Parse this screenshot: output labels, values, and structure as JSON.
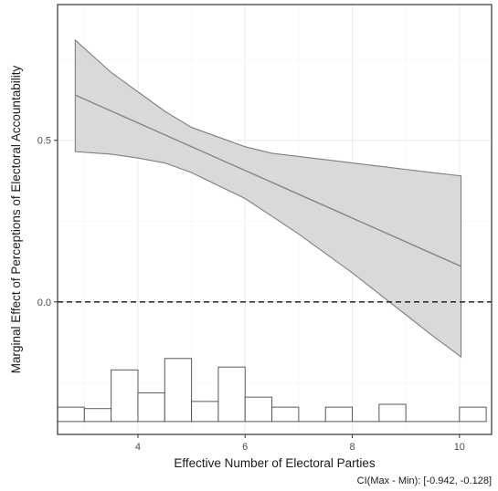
{
  "chart_data": {
    "type": "line",
    "xlabel": "Effective Number of Electoral Parties",
    "ylabel": "Marginal Effect of Perceptions of Electoral Accountability",
    "caption": "CI(Max - Min): [-0.942, -0.128]",
    "xlim": [
      2.5,
      10.6
    ],
    "ylim": [
      -0.41,
      0.92
    ],
    "x_ticks": [
      4,
      6,
      8,
      10
    ],
    "y_ticks": [
      0.0,
      0.5
    ],
    "y_tick_labels": [
      "0.0",
      "0.5"
    ],
    "grid": true,
    "reference_line": {
      "y": 0.0,
      "style": "dashed"
    },
    "series": [
      {
        "type": "line",
        "x": [
          2.83,
          10.03
        ],
        "y": [
          0.64,
          0.11
        ]
      },
      {
        "type": "band",
        "x": [
          2.83,
          3.5,
          4.0,
          4.5,
          5.0,
          5.5,
          6.0,
          6.5,
          7.0,
          7.5,
          8.0,
          8.5,
          9.0,
          9.5,
          10.03
        ],
        "upper": [
          0.81,
          0.71,
          0.65,
          0.59,
          0.54,
          0.51,
          0.48,
          0.46,
          0.45,
          0.44,
          0.43,
          0.42,
          0.41,
          0.4,
          0.39
        ],
        "lower": [
          0.465,
          0.457,
          0.445,
          0.43,
          0.4,
          0.36,
          0.32,
          0.265,
          0.21,
          0.15,
          0.09,
          0.025,
          -0.04,
          -0.105,
          -0.17
        ]
      }
    ],
    "histogram": {
      "bins": [
        {
          "x0": 2.5,
          "x1": 3.0,
          "count": 1.0
        },
        {
          "x0": 3.0,
          "x1": 3.5,
          "count": 0.9
        },
        {
          "x0": 3.5,
          "x1": 4.0,
          "count": 3.6
        },
        {
          "x0": 4.0,
          "x1": 4.5,
          "count": 2.0
        },
        {
          "x0": 4.5,
          "x1": 5.0,
          "count": 4.4
        },
        {
          "x0": 5.0,
          "x1": 5.5,
          "count": 1.4
        },
        {
          "x0": 5.5,
          "x1": 6.0,
          "count": 3.8
        },
        {
          "x0": 6.0,
          "x1": 6.5,
          "count": 1.7
        },
        {
          "x0": 6.5,
          "x1": 7.0,
          "count": 1.0
        },
        {
          "x0": 7.0,
          "x1": 7.5,
          "count": 0.0
        },
        {
          "x0": 7.5,
          "x1": 8.0,
          "count": 1.0
        },
        {
          "x0": 8.0,
          "x1": 8.5,
          "count": 0.0
        },
        {
          "x0": 8.5,
          "x1": 9.0,
          "count": 1.2
        },
        {
          "x0": 9.0,
          "x1": 9.5,
          "count": 0.0
        },
        {
          "x0": 9.5,
          "x1": 10.0,
          "count": 0.0
        },
        {
          "x0": 10.0,
          "x1": 10.5,
          "count": 1.0
        }
      ],
      "max_count": 4.4,
      "baseline_y": -0.37,
      "top_y": -0.175
    },
    "colors": {
      "band_fill": "#d9d9d9",
      "line": "#7f7f7f",
      "panel_border": "#333333",
      "grid_major": "#ebebeb",
      "grid_minor": "#f5f5f5",
      "histogram_stroke": "#595959",
      "reference_line": "#333333"
    }
  }
}
